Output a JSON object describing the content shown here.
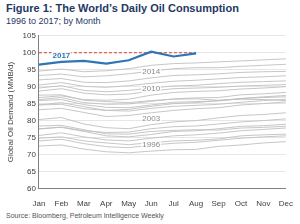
{
  "chart_data": {
    "type": "line",
    "title": "Figure 1: The World’s Daily Oil Consumption",
    "subtitle": "1996 to 2017; by Month",
    "y_label": "Global Oil Demand (MMB/d)",
    "source": "Source: Bloomberg, Petroleum Intelligence Weekly",
    "categories": [
      "Jan",
      "Feb",
      "Mar",
      "Apr",
      "May",
      "Jun",
      "Jul",
      "Aug",
      "Sep",
      "Oct",
      "Nov",
      "Dec"
    ],
    "ylim": [
      60,
      105
    ],
    "yticks": [
      60,
      65,
      70,
      75,
      80,
      85,
      90,
      95,
      100,
      105
    ],
    "grid": true,
    "series": [
      {
        "name": "1996",
        "color": "#bfbfbf",
        "values": [
          72.5,
          72.8,
          71.6,
          70.8,
          70.5,
          71.0,
          71.4,
          71.5,
          72.4,
          72.8,
          73.4,
          73.8
        ]
      },
      {
        "color": "#bfbfbf",
        "values": [
          74.0,
          74.5,
          73.2,
          72.3,
          72.0,
          72.8,
          73.3,
          73.6,
          74.2,
          74.8,
          75.2,
          75.5
        ]
      },
      {
        "color": "#bfbfbf",
        "values": [
          74.8,
          75.2,
          74.0,
          73.4,
          72.9,
          73.5,
          74.0,
          74.2,
          74.6,
          75.5,
          75.8,
          76.0
        ]
      },
      {
        "color": "#bfbfbf",
        "values": [
          75.6,
          76.4,
          75.2,
          74.3,
          74.0,
          74.8,
          75.5,
          75.8,
          76.3,
          77.0,
          77.4,
          77.8
        ]
      },
      {
        "color": "#bfbfbf",
        "values": [
          77.6,
          78.0,
          76.8,
          75.5,
          75.2,
          75.9,
          76.8,
          77.0,
          77.6,
          78.3,
          78.5,
          78.9
        ]
      },
      {
        "color": "#bfbfbf",
        "values": [
          78.4,
          78.6,
          77.3,
          76.1,
          76.0,
          76.8,
          77.1,
          77.3,
          77.2,
          77.8,
          78.0,
          78.3
        ]
      },
      {
        "color": "#bfbfbf",
        "values": [
          77.5,
          78.1,
          77.0,
          76.5,
          76.6,
          77.6,
          78.2,
          78.4,
          79.0,
          79.6,
          80.0,
          80.5
        ]
      },
      {
        "name": "2003",
        "color": "#bfbfbf",
        "values": [
          80.3,
          80.9,
          79.0,
          77.9,
          77.6,
          78.8,
          79.6,
          80.0,
          80.8,
          81.5,
          81.8,
          82.3
        ]
      },
      {
        "color": "#bfbfbf",
        "values": [
          83.2,
          83.6,
          82.4,
          81.2,
          81.5,
          82.3,
          83.0,
          83.5,
          83.8,
          84.6,
          85.0,
          85.5
        ]
      },
      {
        "color": "#bfbfbf",
        "values": [
          84.6,
          85.3,
          84.1,
          83.0,
          82.8,
          83.6,
          84.2,
          84.5,
          84.8,
          85.4,
          85.9,
          86.3
        ]
      },
      {
        "color": "#bfbfbf",
        "values": [
          85.9,
          86.2,
          84.7,
          83.9,
          83.8,
          84.6,
          85.4,
          85.6,
          85.8,
          86.5,
          86.8,
          87.0
        ]
      },
      {
        "color": "#bfbfbf",
        "values": [
          86.2,
          86.8,
          85.3,
          84.8,
          84.9,
          85.7,
          86.4,
          86.7,
          86.8,
          87.6,
          87.9,
          88.3
        ]
      },
      {
        "color": "#bfbfbf",
        "values": [
          87.5,
          87.6,
          86.0,
          85.6,
          85.3,
          85.9,
          86.3,
          86.4,
          86.0,
          86.3,
          86.2,
          85.9
        ]
      },
      {
        "color": "#bfbfbf",
        "values": [
          84.6,
          84.8,
          83.5,
          83.0,
          83.3,
          84.2,
          85.0,
          85.3,
          85.9,
          86.5,
          87.0,
          87.4
        ]
      },
      {
        "name": "2010",
        "color": "#bfbfbf",
        "values": [
          86.8,
          87.3,
          86.2,
          86.0,
          86.3,
          87.5,
          88.3,
          88.6,
          88.8,
          89.3,
          89.6,
          90.0
        ]
      },
      {
        "color": "#bfbfbf",
        "values": [
          88.7,
          89.4,
          88.1,
          87.6,
          87.8,
          88.7,
          89.4,
          89.6,
          89.8,
          90.2,
          90.4,
          90.6
        ]
      },
      {
        "color": "#bfbfbf",
        "values": [
          89.6,
          90.3,
          88.9,
          88.5,
          88.9,
          89.6,
          90.2,
          90.4,
          90.9,
          91.3,
          91.5,
          91.7
        ]
      },
      {
        "color": "#bfbfbf",
        "values": [
          90.5,
          91.2,
          90.1,
          89.8,
          90.3,
          91.0,
          91.6,
          91.9,
          92.3,
          92.7,
          92.9,
          93.2
        ]
      },
      {
        "name": "2014",
        "color": "#bfbfbf",
        "values": [
          92.0,
          92.4,
          91.3,
          91.2,
          91.7,
          92.6,
          93.3,
          93.5,
          93.8,
          94.2,
          94.4,
          94.5
        ]
      },
      {
        "color": "#bfbfbf",
        "values": [
          93.3,
          93.7,
          92.9,
          93.2,
          93.8,
          94.6,
          95.3,
          95.6,
          95.6,
          96.0,
          96.3,
          96.6
        ]
      },
      {
        "color": "#bfbfbf",
        "values": [
          94.6,
          95.2,
          94.4,
          94.7,
          95.3,
          96.3,
          96.8,
          97.0,
          97.3,
          97.6,
          97.9,
          98.2
        ]
      },
      {
        "name": "2017",
        "color": "#2e75b6",
        "values": [
          96.5,
          97.3,
          97.6,
          96.8,
          97.8,
          100.3,
          98.9,
          99.8,
          null,
          null,
          null,
          null
        ]
      },
      {
        "color": "#e03c31",
        "line_style": "dashed",
        "values": [
          100,
          100,
          100,
          100,
          100,
          100,
          100,
          100,
          null,
          null,
          null,
          null
        ]
      }
    ]
  }
}
